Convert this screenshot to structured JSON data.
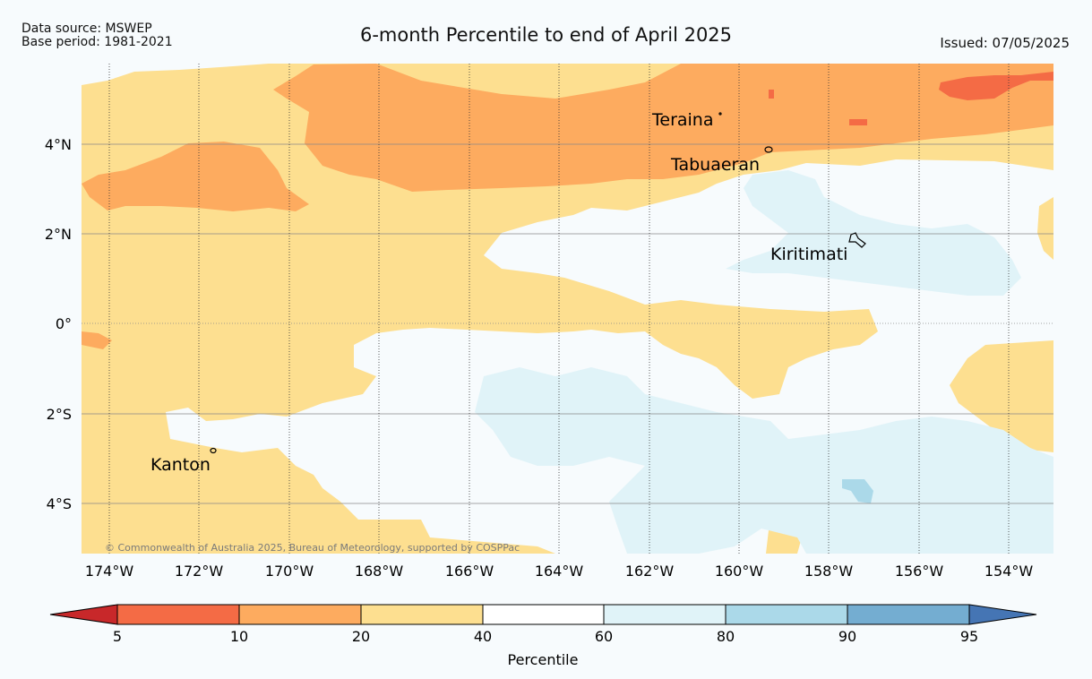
{
  "header": {
    "source": "Data source: MSWEP",
    "base_period": "Base period: 1981-2021",
    "title": "6-month Percentile to end of April 2025",
    "issued": "Issued: 07/05/2025"
  },
  "map": {
    "lat_labels": [
      "4°N",
      "2°N",
      "0°",
      "2°S",
      "4°S"
    ],
    "lon_labels": [
      "174°W",
      "172°W",
      "170°W",
      "168°W",
      "166°W",
      "164°W",
      "162°W",
      "160°W",
      "158°W",
      "156°W",
      "154°W"
    ],
    "places": [
      "Teraina",
      "Tabuaeran",
      "Kiritimati",
      "Kanton"
    ],
    "copyright": "© Commonwealth of Australia 2025, Bureau of Meteorology, supported by COSPPac"
  },
  "legend": {
    "title": "Percentile",
    "ticks": [
      "5",
      "10",
      "20",
      "40",
      "60",
      "80",
      "90",
      "95"
    ],
    "colors": [
      "#c8282a",
      "#f46b45",
      "#fdab5f",
      "#fddf90",
      "#ffffff",
      "#e0f3f8",
      "#abd9e9",
      "#74add1",
      "#4575b4"
    ]
  },
  "colors": {
    "p5_10": "#f46b45",
    "p10_20": "#fdab5f",
    "p20_40": "#fddf90",
    "p40_60": "#f7fbfd",
    "p60_80": "#e0f3f8",
    "p80_90": "#abd9e9"
  }
}
